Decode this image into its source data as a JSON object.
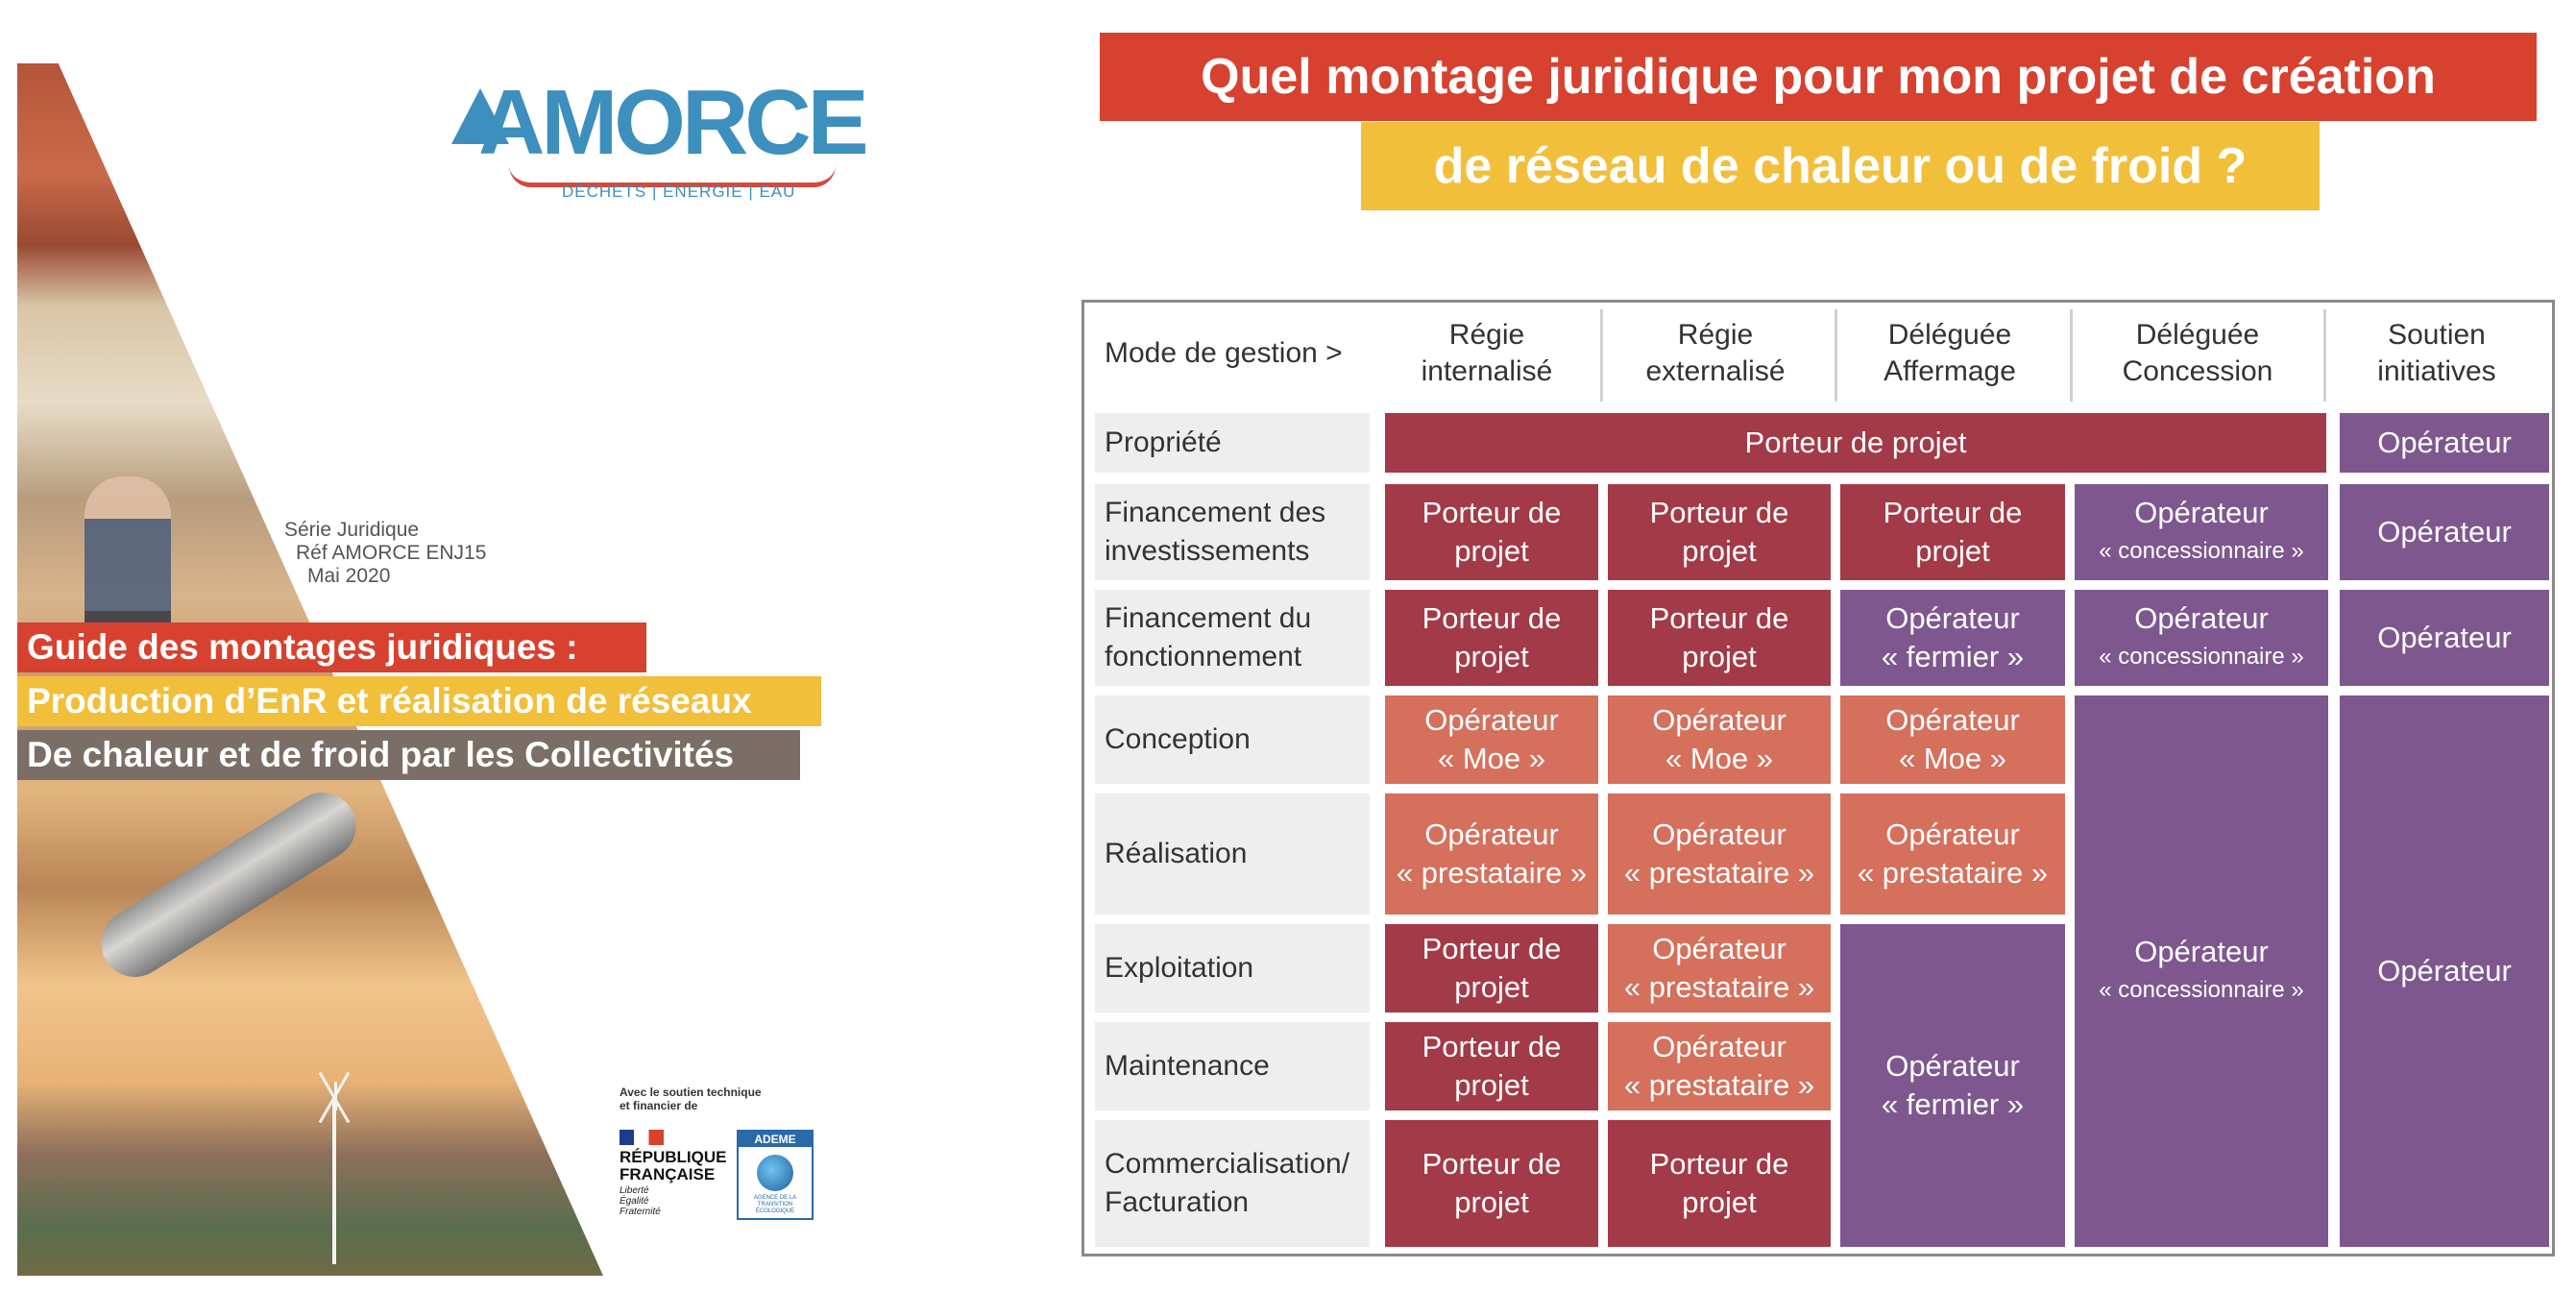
{
  "cover": {
    "logo_text": "AMORCE",
    "logo_tagline": "DÉCHETS | ÉNERGIE | EAU",
    "series": "Série Juridique",
    "reference": "Réf AMORCE ENJ15",
    "date": "Mai 2020",
    "band1": "Guide des montages juridiques :",
    "band2": "Production d’EnR et réalisation de réseaux",
    "band3": "De chaleur et de froid par les Collectivités",
    "support_line1": "Avec le soutien technique",
    "support_line2": "et financier de",
    "rf_name_1": "RÉPUBLIQUE",
    "rf_name_2": "FRANÇAISE",
    "rf_motto_1": "Liberté",
    "rf_motto_2": "Égalité",
    "rf_motto_3": "Fraternité",
    "ademe_name": "ADEME",
    "ademe_sub": "AGENCE DE LA TRANSITION ÉCOLOGIQUE"
  },
  "title": {
    "line1": "Quel montage juridique pour mon projet de création",
    "line2": "de réseau de chaleur ou de froid ?"
  },
  "table": {
    "corner": "Mode de gestion >",
    "headers": [
      {
        "l1": "Régie",
        "l2": "internalisé"
      },
      {
        "l1": "Régie",
        "l2": "externalisé"
      },
      {
        "l1": "Déléguée",
        "l2": "Affermage"
      },
      {
        "l1": "Déléguée",
        "l2": "Concession"
      },
      {
        "l1": "Soutien",
        "l2": "initiatives"
      }
    ],
    "rows": [
      {
        "l1": "Propriété",
        "l2": ""
      },
      {
        "l1": "Financement des",
        "l2": "investissements"
      },
      {
        "l1": "Financement du",
        "l2": "fonctionnement"
      },
      {
        "l1": "Conception",
        "l2": ""
      },
      {
        "l1": "Réalisation",
        "l2": ""
      },
      {
        "l1": "Exploitation",
        "l2": ""
      },
      {
        "l1": "Maintenance",
        "l2": ""
      },
      {
        "l1": "Commercialisation/",
        "l2": "Facturation"
      }
    ],
    "values": {
      "porteur_projet": "Porteur de projet",
      "porteur_de": "Porteur de",
      "projet": "projet",
      "operateur": "Opérateur",
      "concessionnaire": "« concessionnaire »",
      "fermier": "« fermier »",
      "moe": "« Moe »",
      "prestataire": "« prestataire »"
    }
  },
  "colors": {
    "porteur": "#a33a47",
    "operateur_service": "#d4705c",
    "operateur_delegataire": "#7e578f",
    "title_red": "#d6422f",
    "title_yellow": "#f2bf3b"
  }
}
